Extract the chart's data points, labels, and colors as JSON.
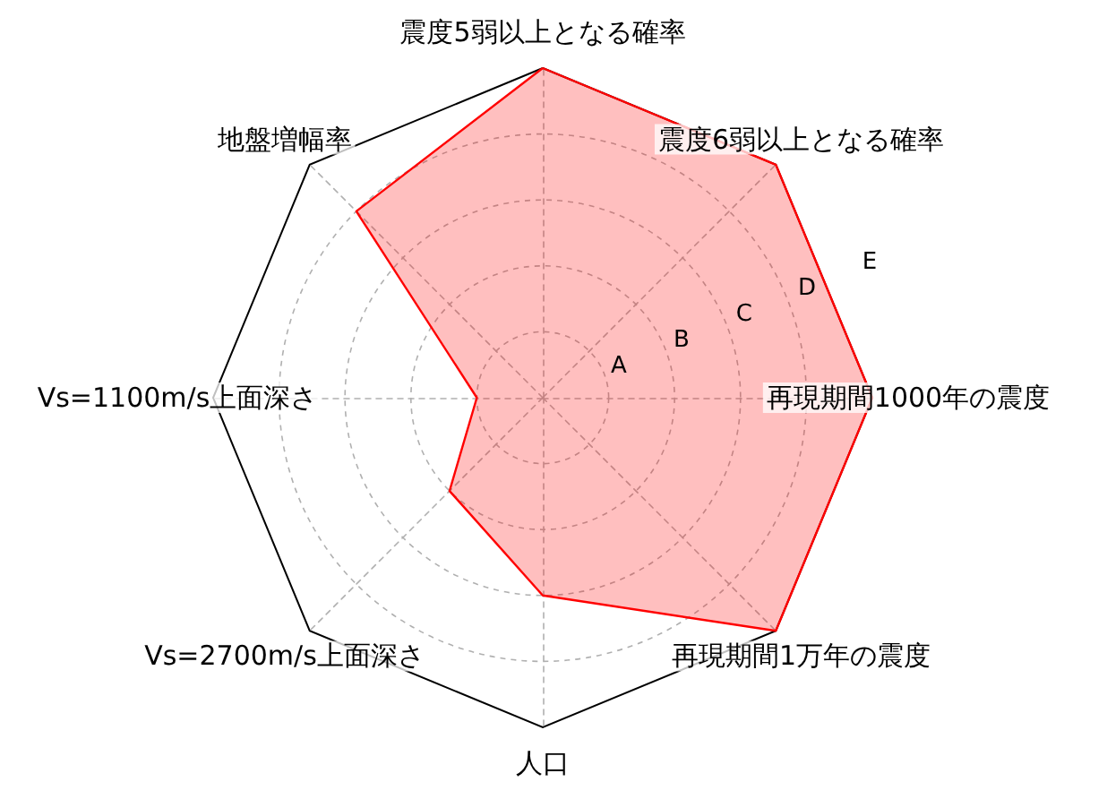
{
  "chart_data": {
    "type": "radar",
    "categories": [
      "震度5弱以上となる確率",
      "震度6弱以上となる確率",
      "再現期間1000年の震度",
      "再現期間1万年の震度",
      "人口",
      "Vs=2700m/s上面深さ",
      "Vs=1100m/s上面深さ",
      "地盤増幅率"
    ],
    "series": [
      {
        "color": "#ff0000",
        "values": [
          5,
          5,
          5,
          5,
          3,
          2,
          1,
          4
        ]
      }
    ],
    "ylim": [
      0,
      5
    ],
    "yticks": [
      {
        "value": 1,
        "label": "A"
      },
      {
        "value": 2,
        "label": "B"
      },
      {
        "value": 3,
        "label": "C"
      },
      {
        "value": 4,
        "label": "D"
      },
      {
        "value": 5,
        "label": "E"
      }
    ],
    "grid": true
  }
}
